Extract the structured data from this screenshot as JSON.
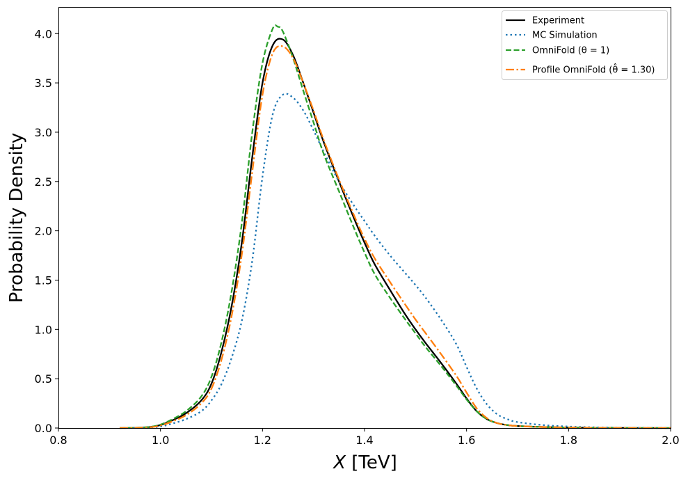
{
  "chart_data": {
    "type": "line",
    "title": "",
    "xlabel": "X [TeV]",
    "xlabel_var": "X",
    "xlabel_unit": " [TeV]",
    "ylabel": "Probability Density",
    "xlim": [
      0.8,
      2.0
    ],
    "ylim": [
      0.0,
      4.27
    ],
    "xticks": [
      "0.8",
      "1.0",
      "1.2",
      "1.4",
      "1.6",
      "1.8",
      "2.0"
    ],
    "yticks": [
      "0.0",
      "0.5",
      "1.0",
      "1.5",
      "2.0",
      "2.5",
      "3.0",
      "3.5",
      "4.0"
    ],
    "grid": false,
    "legend_position": "top-right",
    "series": [
      {
        "name": "Experiment",
        "legend_label": "Experiment",
        "color": "#000000",
        "style": "solid",
        "x": [
          0.92,
          0.95,
          0.98,
          1.0,
          1.02,
          1.05,
          1.08,
          1.1,
          1.12,
          1.14,
          1.16,
          1.18,
          1.2,
          1.22,
          1.24,
          1.26,
          1.28,
          1.3,
          1.32,
          1.35,
          1.38,
          1.4,
          1.42,
          1.45,
          1.48,
          1.5,
          1.52,
          1.55,
          1.58,
          1.6,
          1.62,
          1.64,
          1.66,
          1.68,
          1.7,
          1.75,
          1.8,
          1.85,
          1.9,
          1.95,
          2.0
        ],
        "y": [
          0.0,
          0.002,
          0.01,
          0.03,
          0.07,
          0.15,
          0.28,
          0.45,
          0.78,
          1.25,
          1.9,
          2.75,
          3.5,
          3.88,
          3.94,
          3.78,
          3.5,
          3.2,
          2.9,
          2.5,
          2.12,
          1.88,
          1.66,
          1.4,
          1.15,
          1.0,
          0.86,
          0.66,
          0.45,
          0.3,
          0.17,
          0.09,
          0.05,
          0.03,
          0.02,
          0.01,
          0.005,
          0.002,
          0.001,
          0.0,
          0.0
        ]
      },
      {
        "name": "MC Simulation",
        "legend_label": "MC Simulation",
        "color": "#1f77b4",
        "style": "dotted",
        "x": [
          0.92,
          0.95,
          0.98,
          1.0,
          1.02,
          1.05,
          1.08,
          1.1,
          1.12,
          1.14,
          1.16,
          1.18,
          1.2,
          1.22,
          1.24,
          1.26,
          1.28,
          1.3,
          1.32,
          1.35,
          1.38,
          1.4,
          1.42,
          1.45,
          1.48,
          1.5,
          1.52,
          1.55,
          1.58,
          1.6,
          1.62,
          1.64,
          1.66,
          1.68,
          1.7,
          1.75,
          1.8,
          1.85,
          1.9,
          1.95,
          2.0
        ],
        "y": [
          0.0,
          0.001,
          0.005,
          0.015,
          0.04,
          0.09,
          0.17,
          0.28,
          0.45,
          0.72,
          1.1,
          1.7,
          2.55,
          3.18,
          3.38,
          3.35,
          3.22,
          3.02,
          2.8,
          2.5,
          2.25,
          2.1,
          1.95,
          1.75,
          1.57,
          1.45,
          1.32,
          1.1,
          0.85,
          0.62,
          0.4,
          0.24,
          0.14,
          0.09,
          0.06,
          0.03,
          0.015,
          0.007,
          0.003,
          0.001,
          0.0
        ]
      },
      {
        "name": "OmniFold (θ = 1)",
        "legend_label": "OmniFold (θ = 1)",
        "color": "#2ca02c",
        "style": "dashed",
        "x": [
          0.92,
          0.95,
          0.98,
          1.0,
          1.02,
          1.05,
          1.08,
          1.1,
          1.12,
          1.14,
          1.16,
          1.18,
          1.2,
          1.22,
          1.23,
          1.24,
          1.26,
          1.28,
          1.3,
          1.32,
          1.35,
          1.38,
          1.4,
          1.42,
          1.45,
          1.48,
          1.5,
          1.52,
          1.55,
          1.58,
          1.6,
          1.62,
          1.64,
          1.66,
          1.68,
          1.7,
          1.75,
          1.8,
          1.85,
          1.9,
          1.95,
          2.0
        ],
        "y": [
          0.0,
          0.003,
          0.012,
          0.035,
          0.08,
          0.17,
          0.32,
          0.52,
          0.88,
          1.4,
          2.1,
          3.0,
          3.7,
          4.05,
          4.07,
          4.02,
          3.75,
          3.42,
          3.1,
          2.78,
          2.4,
          2.02,
          1.78,
          1.56,
          1.32,
          1.1,
          0.96,
          0.82,
          0.63,
          0.43,
          0.29,
          0.17,
          0.09,
          0.05,
          0.03,
          0.02,
          0.01,
          0.005,
          0.002,
          0.001,
          0.0,
          0.0
        ]
      },
      {
        "name": "Profile OmniFold (θ̂ = 1.30)",
        "legend_label": "Profile OmniFold (θ̂ = 1.30)",
        "color": "#ff7f0e",
        "style": "dashdot",
        "x": [
          0.92,
          0.95,
          0.98,
          1.0,
          1.02,
          1.05,
          1.08,
          1.1,
          1.12,
          1.14,
          1.16,
          1.18,
          1.2,
          1.22,
          1.24,
          1.26,
          1.28,
          1.3,
          1.32,
          1.35,
          1.38,
          1.4,
          1.42,
          1.45,
          1.48,
          1.5,
          1.52,
          1.55,
          1.58,
          1.6,
          1.62,
          1.64,
          1.66,
          1.68,
          1.7,
          1.75,
          1.8,
          1.85,
          1.9,
          1.95,
          2.0
        ],
        "y": [
          0.0,
          0.002,
          0.008,
          0.025,
          0.06,
          0.13,
          0.25,
          0.4,
          0.7,
          1.15,
          1.78,
          2.6,
          3.38,
          3.8,
          3.87,
          3.75,
          3.5,
          3.22,
          2.92,
          2.52,
          2.15,
          1.92,
          1.72,
          1.48,
          1.25,
          1.1,
          0.96,
          0.75,
          0.53,
          0.36,
          0.2,
          0.1,
          0.05,
          0.03,
          0.02,
          0.01,
          0.005,
          0.002,
          0.001,
          0.0,
          0.0
        ]
      }
    ]
  }
}
